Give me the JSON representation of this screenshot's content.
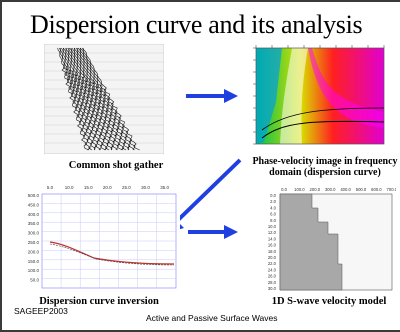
{
  "title": "Dispersion curve and its analysis",
  "panels": {
    "shot_gather": {
      "caption": "Common shot gather"
    },
    "phase_velocity": {
      "caption_line1": "Phase-velocity image in frequency",
      "caption_line2": "domain (dispersion curve)"
    },
    "inversion": {
      "caption": "Dispersion curve inversion",
      "top_axis_ticks": [
        "5.0",
        "10.0",
        "15.0",
        "20.0",
        "25.0",
        "30.0",
        "35.0"
      ],
      "left_axis_ticks": [
        "500.0",
        "450.0",
        "400.0",
        "350.0",
        "300.0",
        "250.0",
        "200.0",
        "150.0",
        "100.0",
        "50.0"
      ]
    },
    "velocity_model": {
      "caption": "1D S-wave velocity model",
      "top_axis_ticks": [
        "0.0",
        "100.0",
        "200.0",
        "300.0",
        "400.0",
        "500.0",
        "600.0",
        "700.0"
      ],
      "left_axis_ticks": [
        "0.0",
        "2.0",
        "4.0",
        "6.0",
        "8.0",
        "10.0",
        "12.0",
        "14.0",
        "16.0",
        "18.0",
        "20.0",
        "22.0",
        "24.0",
        "26.0",
        "28.0",
        "30.0"
      ]
    }
  },
  "footer": {
    "source": "SAGEEP2003",
    "subtitle": "Active and Passive Surface Waves"
  },
  "colors": {
    "arrow": "#1f3fe0",
    "frame": "#3a3a3a",
    "curve": "#c0302a",
    "model_fill": "#a8a8a8"
  },
  "icons": [
    "arrow-right-icon",
    "arrow-down-left-icon"
  ]
}
